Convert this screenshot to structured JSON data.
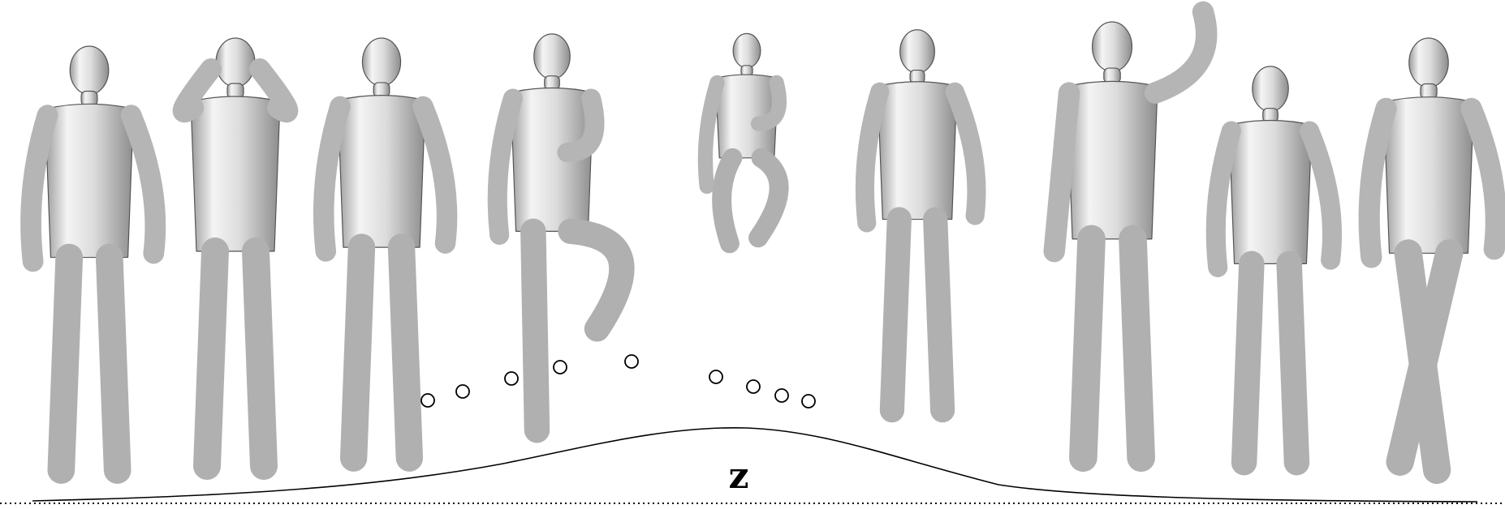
{
  "figure": {
    "latent_label": "z",
    "figures": [
      {
        "pose": "head-tilted-hand-on-hip",
        "mesh_color": "#d9d9d9"
      },
      {
        "pose": "hands-at-ears",
        "mesh_color": "#d9d9d9"
      },
      {
        "pose": "turned-arm-raised",
        "mesh_color": "#d9d9d9"
      },
      {
        "pose": "one-knee-raised",
        "mesh_color": "#d9d9d9"
      },
      {
        "pose": "jumping-crouched",
        "mesh_color": "#d9d9d9"
      },
      {
        "pose": "standing-hands-in-pockets",
        "mesh_color": "#d9d9d9"
      },
      {
        "pose": "waving-hand-up",
        "mesh_color": "#d9d9d9"
      },
      {
        "pose": "woman-hand-to-face",
        "mesh_color": "#d9d9d9"
      },
      {
        "pose": "walking-crossed-legs",
        "mesh_color": "#d9d9d9"
      }
    ],
    "samples_count": 9,
    "curve_color": "#000000",
    "baseline_style": "dotted"
  }
}
